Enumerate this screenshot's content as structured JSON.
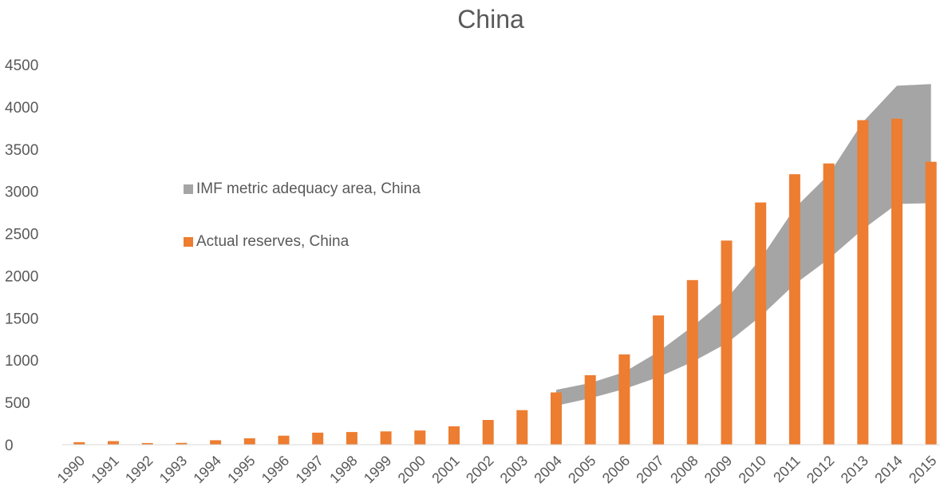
{
  "chart_data": {
    "type": "bar",
    "title": "China",
    "xlabel": "",
    "ylabel": "",
    "ylim": [
      0,
      4500
    ],
    "yticks": [
      0,
      500,
      1000,
      1500,
      2000,
      2500,
      3000,
      3500,
      4000,
      4500
    ],
    "grid": false,
    "legend_position": "center-left",
    "categories": [
      "1990",
      "1991",
      "1992",
      "1993",
      "1994",
      "1995",
      "1996",
      "1997",
      "1998",
      "1999",
      "2000",
      "2001",
      "2002",
      "2003",
      "2004",
      "2005",
      "2006",
      "2007",
      "2008",
      "2009",
      "2010",
      "2011",
      "2012",
      "2013",
      "2014",
      "2015"
    ],
    "series": [
      {
        "name": "Actual reserves, China",
        "type": "bar",
        "color": "#ED7D31",
        "values": [
          30,
          43,
          20,
          22,
          53,
          76,
          107,
          143,
          150,
          158,
          168,
          218,
          293,
          409,
          619,
          823,
          1069,
          1531,
          1949,
          2417,
          2868,
          3203,
          3331,
          3843,
          3860,
          3350
        ]
      },
      {
        "name": "IMF metric adequacy area, China",
        "type": "area-band",
        "color": "#A5A5A5",
        "start_category": "2004",
        "lower": [
          460,
          550,
          660,
          800,
          980,
          1200,
          1520,
          1900,
          2200,
          2550,
          2850,
          2860
        ],
        "upper": [
          650,
          730,
          860,
          1100,
          1400,
          1730,
          2200,
          2800,
          3200,
          3820,
          4250,
          4270
        ]
      }
    ]
  }
}
